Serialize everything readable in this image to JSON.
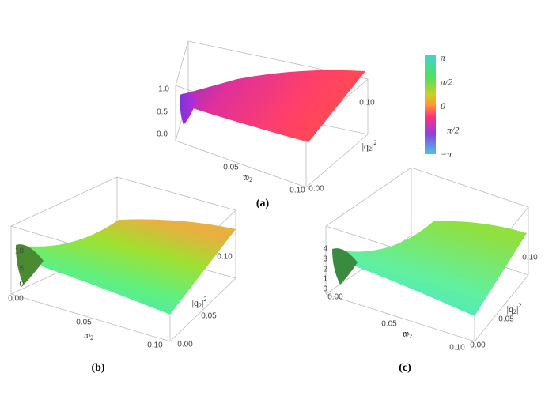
{
  "panels": [
    {
      "label": "(a)",
      "zticks": [
        "1.0",
        "0.5",
        "0.0"
      ],
      "xticks": [
        "0.05",
        "0.10"
      ],
      "yticks": [
        "0.10",
        "0.00"
      ],
      "xlabel": {
        "base": "𝔴",
        "sub": "2"
      },
      "ylabel": {
        "base": "|q",
        "sub": "2",
        "rest": "|",
        "sup": "2"
      }
    },
    {
      "label": "(b)",
      "zticks": [
        "10",
        "5",
        "0"
      ],
      "xticks": [
        "0.00",
        "0.05",
        "0.10"
      ],
      "yticks": [
        "0.10",
        "0.05",
        "0.00"
      ],
      "xlabel": {
        "base": "𝔴",
        "sub": "2"
      },
      "ylabel": {
        "base": "|q",
        "sub": "2",
        "rest": "|",
        "sup": "2"
      }
    },
    {
      "label": "(c)",
      "zticks": [
        "4",
        "3",
        "2",
        "1",
        "0"
      ],
      "xticks": [
        "0.00",
        "0.05",
        "0.10"
      ],
      "yticks": [
        "0.10",
        "0.05",
        "0.00"
      ],
      "xlabel": {
        "base": "𝔴",
        "sub": "2"
      },
      "ylabel": {
        "base": "|q",
        "sub": "2",
        "rest": "|",
        "sup": "2"
      }
    }
  ],
  "colorbar": {
    "labels": [
      "π",
      "π/2",
      "0",
      "−π/2",
      "−π"
    ]
  }
}
